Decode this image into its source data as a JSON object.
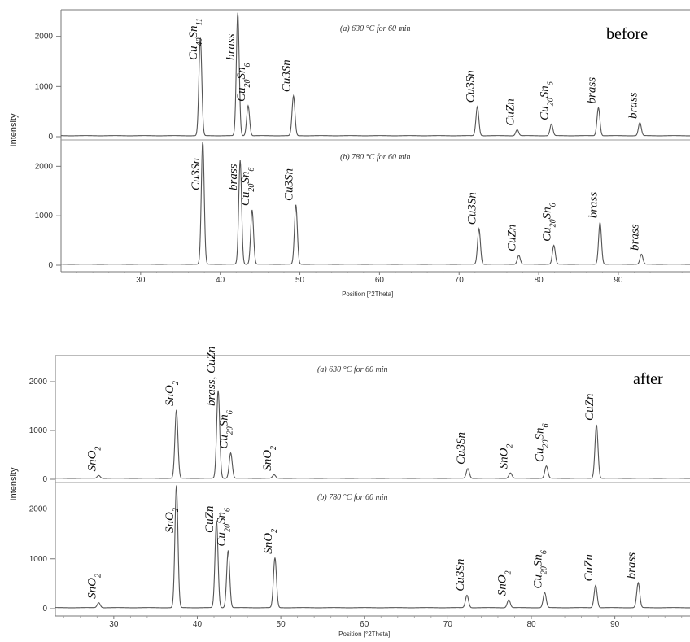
{
  "chart_data": [
    {
      "type": "line",
      "tag": "before",
      "xlabel": "Position [°2Theta]",
      "ylabel": "Intensity",
      "x_ticks": [
        30,
        40,
        50,
        60,
        70,
        80,
        90
      ],
      "xlim": [
        20,
        99
      ],
      "y_ticks": [
        0,
        1000,
        2000
      ],
      "panels": [
        {
          "condition": "(a) 630 °C for 60 min",
          "ylim": [
            0,
            2400
          ],
          "baseline": 20,
          "peaks": [
            {
              "x": 37.5,
              "y": 1950,
              "label": "Cu40Sn11"
            },
            {
              "x": 42.2,
              "y": 2450,
              "label": "brass"
            },
            {
              "x": 43.5,
              "y": 600,
              "label": "Cu20Sn6"
            },
            {
              "x": 49.2,
              "y": 790,
              "label": "Cu3Sn"
            },
            {
              "x": 72.3,
              "y": 580,
              "label": "Cu3Sn"
            },
            {
              "x": 77.3,
              "y": 120,
              "label": "CuZn"
            },
            {
              "x": 81.6,
              "y": 230,
              "label": "Cu20Sn6"
            },
            {
              "x": 87.5,
              "y": 560,
              "label": "brass"
            },
            {
              "x": 92.7,
              "y": 260,
              "label": "brass"
            }
          ]
        },
        {
          "condition": "(b) 780 °C for 60 min",
          "ylim": [
            0,
            2400
          ],
          "baseline": 20,
          "peaks": [
            {
              "x": 37.8,
              "y": 2500,
              "label": "Cu3Sn"
            },
            {
              "x": 42.5,
              "y": 2100,
              "label": "brass"
            },
            {
              "x": 44.0,
              "y": 1100,
              "label": "Cu20Sn6"
            },
            {
              "x": 49.5,
              "y": 1200,
              "label": "Cu3Sn"
            },
            {
              "x": 72.5,
              "y": 720,
              "label": "Cu3Sn"
            },
            {
              "x": 77.5,
              "y": 180,
              "label": "CuZn"
            },
            {
              "x": 81.9,
              "y": 380,
              "label": "Cu20Sn6"
            },
            {
              "x": 87.7,
              "y": 850,
              "label": "brass"
            },
            {
              "x": 92.9,
              "y": 200,
              "label": "brass"
            }
          ]
        }
      ]
    },
    {
      "type": "line",
      "tag": "after",
      "xlabel": "Position [°2Theta]",
      "ylabel": "Intensity",
      "x_ticks": [
        30,
        40,
        50,
        60,
        70,
        80,
        90
      ],
      "xlim": [
        23,
        99
      ],
      "y_ticks": [
        0,
        1000,
        2000
      ],
      "panels": [
        {
          "condition": "(a) 630 °C for 60 min",
          "ylim": [
            0,
            2400
          ],
          "baseline": 20,
          "peaks": [
            {
              "x": 28.2,
              "y": 60,
              "label": "SnO2"
            },
            {
              "x": 37.5,
              "y": 1400,
              "label": "SnO2"
            },
            {
              "x": 42.5,
              "y": 1800,
              "label": "brass, CuZn"
            },
            {
              "x": 44.0,
              "y": 520,
              "label": "Cu20Sn6"
            },
            {
              "x": 49.2,
              "y": 70,
              "label": "SnO2"
            },
            {
              "x": 72.4,
              "y": 200,
              "label": "Cu3Sn"
            },
            {
              "x": 77.5,
              "y": 110,
              "label": "SnO2"
            },
            {
              "x": 81.8,
              "y": 250,
              "label": "Cu20Sn6"
            },
            {
              "x": 87.8,
              "y": 1100,
              "label": "CuZn"
            }
          ]
        },
        {
          "condition": "(b) 780 °C for 60 min",
          "ylim": [
            0,
            2400
          ],
          "baseline": 20,
          "peaks": [
            {
              "x": 28.2,
              "y": 100,
              "label": "SnO2"
            },
            {
              "x": 37.5,
              "y": 2450,
              "label": "SnO2"
            },
            {
              "x": 42.3,
              "y": 1750,
              "label": "CuZn"
            },
            {
              "x": 43.7,
              "y": 1150,
              "label": "Cu20Sn6"
            },
            {
              "x": 49.3,
              "y": 1000,
              "label": "SnO2"
            },
            {
              "x": 72.3,
              "y": 250,
              "label": "Cu3Sn"
            },
            {
              "x": 77.3,
              "y": 160,
              "label": "SnO2"
            },
            {
              "x": 81.6,
              "y": 300,
              "label": "Cu20Sn6"
            },
            {
              "x": 87.7,
              "y": 450,
              "label": "CuZn"
            },
            {
              "x": 92.8,
              "y": 500,
              "label": "brass"
            }
          ]
        }
      ]
    }
  ]
}
